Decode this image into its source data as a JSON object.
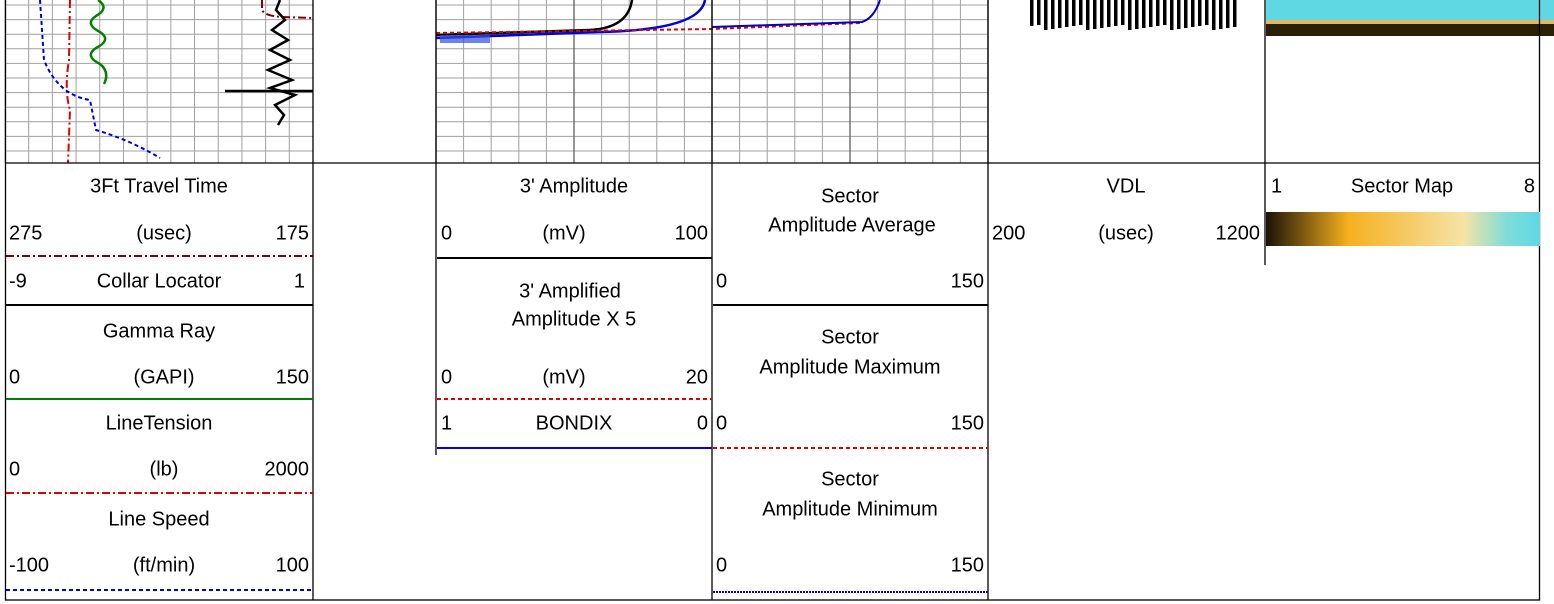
{
  "tracks": [
    {
      "entries": [
        {
          "title": "3Ft Travel Time",
          "left": "275",
          "unit": "(usec)",
          "right": "175"
        },
        {
          "left": "-9",
          "unit": "Collar Locator",
          "right": "1"
        },
        {
          "title": "Gamma Ray",
          "left": "0",
          "unit": "(GAPI)",
          "right": "150"
        },
        {
          "title": "LineTension",
          "left": "0",
          "unit": "(lb)",
          "right": "2000"
        },
        {
          "title": "Line Speed",
          "left": "-100",
          "unit": "(ft/min)",
          "right": "100"
        }
      ]
    },
    {
      "entries": [
        {
          "title": "3' Amplitude",
          "left": "0",
          "unit": "(mV)",
          "right": "100"
        },
        {
          "title": [
            "3' Amplified",
            "Amplitude X 5"
          ],
          "left": "0",
          "unit": "(mV)",
          "right": "20"
        },
        {
          "left": "1",
          "unit": "BONDIX",
          "right": "0"
        }
      ]
    },
    {
      "entries": [
        {
          "title": [
            "Sector",
            "Amplitude Average"
          ],
          "left": "0",
          "right": "150"
        },
        {
          "title": [
            "Sector",
            "Amplitude Maximum"
          ],
          "left": "0",
          "right": "150"
        },
        {
          "title": [
            "Sector",
            "Amplitude Minimum"
          ],
          "left": "0",
          "right": "150"
        }
      ]
    },
    {
      "entries": [
        {
          "title": "VDL",
          "left": "200",
          "unit": "(usec)",
          "right": "1200"
        }
      ]
    },
    {
      "entries": [
        {
          "left": "1",
          "unit": "Sector Map",
          "right": "8"
        }
      ]
    }
  ]
}
